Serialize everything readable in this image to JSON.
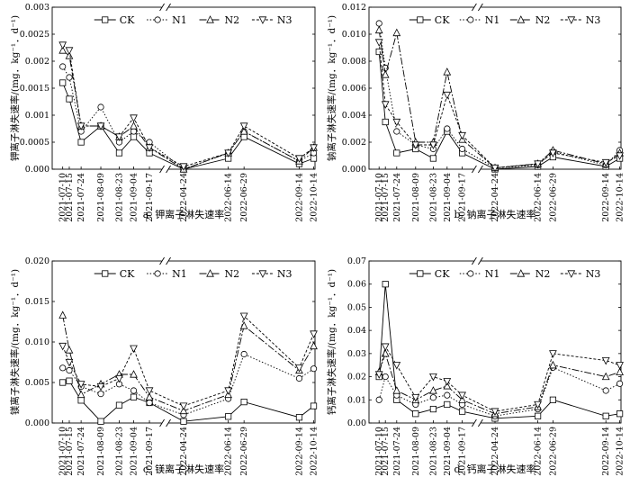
{
  "chart_data": [
    {
      "type": "line",
      "caption": "a. 钾离子淋失速率",
      "ylabel": "钾离子淋失速率/(mg．kg⁻¹．d⁻¹)",
      "ylim": [
        0,
        0.003
      ],
      "yticks": [
        "0.000",
        "0.0005",
        "0.001",
        "0.0015",
        "0.002",
        "0.0025",
        "0.003"
      ],
      "yticks_val": [
        0,
        0.0005,
        0.001,
        0.0015,
        0.002,
        0.0025,
        0.003
      ],
      "ytick_labels": [
        "0.000",
        "0.0005",
        "0.001",
        "0.0015",
        "0.002",
        "0.0025",
        "0.003"
      ],
      "x": [
        "2021-07-10",
        "2021-07-15",
        "2021-07-24",
        "2021-08-09",
        "2021-08-23",
        "2021-09-04",
        "2021-09-17",
        "2022-04-24",
        "2022-06-14",
        "2022-06-29",
        "2022-09-14",
        "2022-10-14"
      ],
      "series": [
        {
          "name": "CK",
          "values": [
            0.0016,
            0.0013,
            0.0005,
            0.0008,
            0.0003,
            0.0006,
            0.0003,
            0.0,
            0.0002,
            0.0006,
            0.0001,
            0.0002
          ]
        },
        {
          "name": "N1",
          "values": [
            0.0019,
            0.0017,
            0.0007,
            0.00115,
            0.0005,
            0.0007,
            0.0005,
            0.0,
            0.0003,
            0.0007,
            0.00015,
            0.0003
          ]
        },
        {
          "name": "N2",
          "values": [
            0.0022,
            0.0021,
            0.0008,
            0.0008,
            0.0006,
            0.0008,
            0.0004,
            0.0,
            0.0003,
            0.0007,
            0.00015,
            0.0004
          ]
        },
        {
          "name": "N3",
          "values": [
            0.0023,
            0.0022,
            0.0008,
            0.0008,
            0.0006,
            0.00095,
            0.0004,
            5e-05,
            0.0003,
            0.0008,
            0.0002,
            0.0004
          ]
        }
      ]
    },
    {
      "type": "line",
      "caption": "b. 钠离子淋失速率",
      "ylabel": "钠离子淋失速率/(mg．kg⁻¹．d⁻¹)",
      "ylim": [
        0,
        0.012
      ],
      "yticks_val": [
        0,
        0.002,
        0.004,
        0.006,
        0.008,
        0.01,
        0.012
      ],
      "ytick_labels": [
        "0.000",
        "0.002",
        "0.004",
        "0.006",
        "0.008",
        "0.010",
        "0.012"
      ],
      "x": [
        "2021-07-10",
        "2021-07-15",
        "2021-07-24",
        "2021-08-09",
        "2021-08-23",
        "2021-09-04",
        "2021-09-17",
        "2022-04-24",
        "2022-06-14",
        "2022-06-29",
        "2022-09-14",
        "2022-10-14"
      ],
      "series": [
        {
          "name": "CK",
          "values": [
            0.0087,
            0.0035,
            0.0012,
            0.0015,
            0.0008,
            0.0028,
            0.0012,
            0.0,
            0.0002,
            0.0009,
            0.0002,
            0.0008
          ]
        },
        {
          "name": "N1",
          "values": [
            0.0108,
            0.0075,
            0.0028,
            0.0018,
            0.0015,
            0.003,
            0.0015,
            0.0001,
            0.0003,
            0.0013,
            0.0003,
            0.0014
          ]
        },
        {
          "name": "N2",
          "values": [
            0.0103,
            0.007,
            0.0101,
            0.002,
            0.002,
            0.0072,
            0.0022,
            0.0001,
            0.0004,
            0.0014,
            0.0004,
            0.0012
          ]
        },
        {
          "name": "N3",
          "values": [
            0.0094,
            0.0048,
            0.0035,
            0.0018,
            0.0018,
            0.0055,
            0.0025,
            0.0001,
            0.0004,
            0.0012,
            0.0005,
            0.001
          ]
        }
      ]
    },
    {
      "type": "line",
      "caption": "c. 镁离子淋失速率",
      "ylabel": "镁离子淋失速率/(mg．kg⁻¹．d⁻¹)",
      "ylim": [
        0,
        0.02
      ],
      "yticks_val": [
        0,
        0.005,
        0.01,
        0.015,
        0.02
      ],
      "ytick_labels": [
        "0.000",
        "0.005",
        "0.010",
        "0.015",
        "0.020"
      ],
      "x": [
        "2021-07-10",
        "2021-07-15",
        "2021-07-24",
        "2021-08-09",
        "2021-08-23",
        "2021-09-04",
        "2021-09-17",
        "2022-04-24",
        "2022-06-14",
        "2022-06-29",
        "2022-09-14",
        "2022-10-14"
      ],
      "series": [
        {
          "name": "CK",
          "values": [
            0.005,
            0.0052,
            0.0028,
            0.0002,
            0.0022,
            0.0032,
            0.0025,
            0.0002,
            0.0008,
            0.0026,
            0.0007,
            0.0021
          ]
        },
        {
          "name": "N1",
          "values": [
            0.0068,
            0.0065,
            0.0045,
            0.0036,
            0.0048,
            0.004,
            0.0025,
            0.001,
            0.003,
            0.0085,
            0.0055,
            0.0067
          ]
        },
        {
          "name": "N2",
          "values": [
            0.0133,
            0.009,
            0.0035,
            0.0048,
            0.006,
            0.006,
            0.0032,
            0.0015,
            0.0035,
            0.012,
            0.0065,
            0.0095
          ]
        },
        {
          "name": "N3",
          "values": [
            0.0095,
            0.0075,
            0.0048,
            0.0045,
            0.0055,
            0.0092,
            0.004,
            0.0021,
            0.004,
            0.0132,
            0.0068,
            0.011
          ]
        }
      ]
    },
    {
      "type": "line",
      "caption": "d. 钙离子淋失速率",
      "ylabel": "钙离子淋失速率/(mg．kg⁻¹．d⁻¹)",
      "ylim": [
        0,
        0.07
      ],
      "yticks_val": [
        0,
        0.01,
        0.02,
        0.03,
        0.04,
        0.05,
        0.06,
        0.07
      ],
      "ytick_labels": [
        "0.00",
        "0.01",
        "0.02",
        "0.03",
        "0.04",
        "0.05",
        "0.06",
        "0.07"
      ],
      "x": [
        "2021-07-10",
        "2021-07-15",
        "2021-07-24",
        "2021-08-09",
        "2021-08-23",
        "2021-09-04",
        "2021-09-17",
        "2022-04-24",
        "2022-06-14",
        "2022-06-29",
        "2022-09-14",
        "2022-10-14"
      ],
      "series": [
        {
          "name": "CK",
          "values": [
            0.02,
            0.06,
            0.01,
            0.004,
            0.006,
            0.008,
            0.005,
            0.002,
            0.003,
            0.01,
            0.003,
            0.004
          ]
        },
        {
          "name": "N1",
          "values": [
            0.01,
            0.02,
            0.012,
            0.008,
            0.011,
            0.012,
            0.008,
            0.003,
            0.006,
            0.024,
            0.014,
            0.017
          ]
        },
        {
          "name": "N2",
          "values": [
            0.022,
            0.03,
            0.014,
            0.01,
            0.014,
            0.016,
            0.01,
            0.004,
            0.007,
            0.025,
            0.02,
            0.022
          ]
        },
        {
          "name": "N3",
          "values": [
            0.021,
            0.033,
            0.025,
            0.011,
            0.02,
            0.018,
            0.012,
            0.005,
            0.008,
            0.03,
            0.027,
            0.025
          ]
        }
      ]
    }
  ],
  "legend": [
    "CK",
    "N1",
    "N2",
    "N3"
  ]
}
